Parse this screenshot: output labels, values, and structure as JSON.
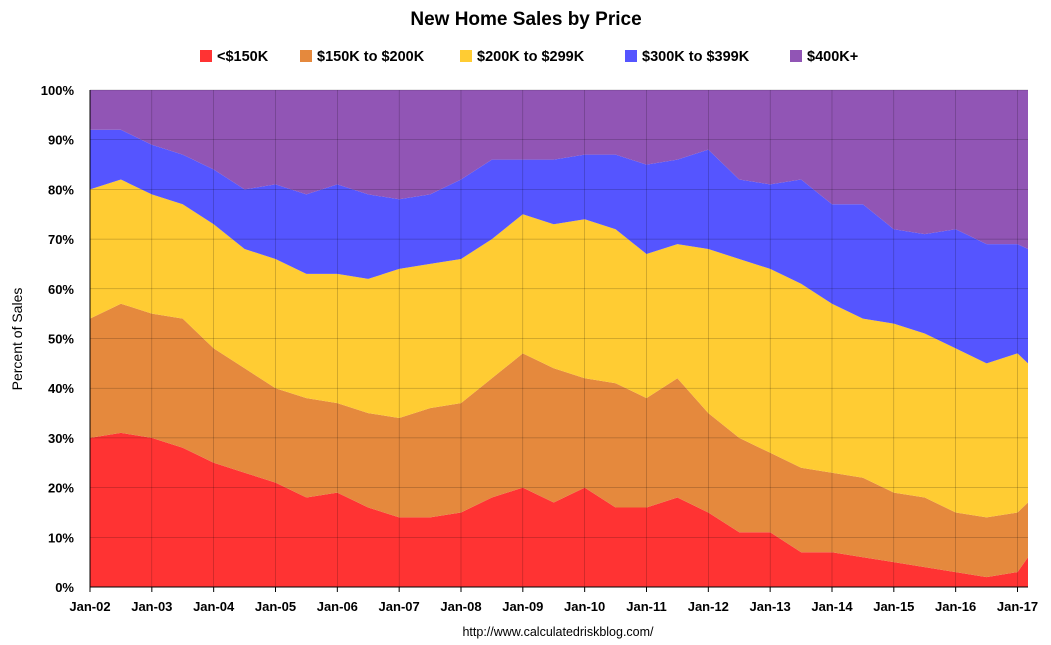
{
  "chart_data": {
    "type": "area",
    "stacked": true,
    "title": "New Home Sales by Price",
    "xlabel": "",
    "ylabel": "Percent of Sales",
    "ylim": [
      0,
      100
    ],
    "y_ticks": [
      "0%",
      "10%",
      "20%",
      "30%",
      "40%",
      "50%",
      "60%",
      "70%",
      "80%",
      "90%",
      "100%"
    ],
    "x_ticks": [
      "Jan-02",
      "Jan-03",
      "Jan-04",
      "Jan-05",
      "Jan-06",
      "Jan-07",
      "Jan-08",
      "Jan-09",
      "Jan-10",
      "Jan-11",
      "Jan-12",
      "Jan-13",
      "Jan-14",
      "Jan-15",
      "Jan-16",
      "Jan-17"
    ],
    "x_tick_years": [
      2002,
      2003,
      2004,
      2005,
      2006,
      2007,
      2008,
      2009,
      2010,
      2011,
      2012,
      2013,
      2014,
      2015,
      2016,
      2017
    ],
    "x_range_years": [
      2002.0,
      2017.17
    ],
    "grid": true,
    "legend_position": "top",
    "source_note": "http://www.calculatedriskblog.com/",
    "x_years": [
      2002.0,
      2002.5,
      2003.0,
      2003.5,
      2004.0,
      2004.5,
      2005.0,
      2005.5,
      2006.0,
      2006.5,
      2007.0,
      2007.5,
      2008.0,
      2008.5,
      2009.0,
      2009.5,
      2010.0,
      2010.5,
      2011.0,
      2011.5,
      2012.0,
      2012.5,
      2013.0,
      2013.5,
      2014.0,
      2014.5,
      2015.0,
      2015.5,
      2016.0,
      2016.5,
      2017.0,
      2017.17
    ],
    "series": [
      {
        "name": "<$150K",
        "color": "#ff3333",
        "values": [
          30,
          31,
          30,
          28,
          25,
          23,
          21,
          18,
          19,
          16,
          14,
          14,
          15,
          18,
          20,
          17,
          20,
          16,
          16,
          18,
          15,
          11,
          11,
          7,
          7,
          6,
          5,
          4,
          3,
          2,
          3,
          6
        ]
      },
      {
        "name": "$150K to $200K",
        "color": "#e5893d",
        "values": [
          24,
          26,
          25,
          26,
          23,
          21,
          19,
          20,
          18,
          19,
          20,
          22,
          22,
          24,
          27,
          27,
          22,
          25,
          22,
          24,
          20,
          19,
          16,
          17,
          16,
          16,
          14,
          14,
          12,
          12,
          12,
          11
        ]
      },
      {
        "name": "$200K to $299K",
        "color": "#ffcc33",
        "values": [
          26,
          25,
          24,
          23,
          25,
          24,
          26,
          25,
          26,
          27,
          30,
          29,
          29,
          28,
          28,
          29,
          32,
          31,
          29,
          27,
          33,
          36,
          37,
          37,
          34,
          32,
          34,
          33,
          33,
          31,
          32,
          28
        ]
      },
      {
        "name": "$300K to $399K",
        "color": "#5555ff",
        "values": [
          12,
          10,
          10,
          10,
          11,
          12,
          15,
          16,
          18,
          17,
          14,
          14,
          16,
          16,
          11,
          13,
          13,
          15,
          18,
          17,
          20,
          16,
          17,
          21,
          20,
          23,
          19,
          20,
          24,
          24,
          22,
          23
        ]
      },
      {
        "name": "$400K+",
        "color": "#9155b5",
        "values": [
          8,
          8,
          11,
          13,
          16,
          20,
          19,
          21,
          19,
          21,
          22,
          21,
          18,
          14,
          14,
          14,
          13,
          13,
          15,
          14,
          12,
          18,
          19,
          18,
          23,
          23,
          28,
          29,
          28,
          31,
          31,
          32
        ]
      }
    ]
  }
}
